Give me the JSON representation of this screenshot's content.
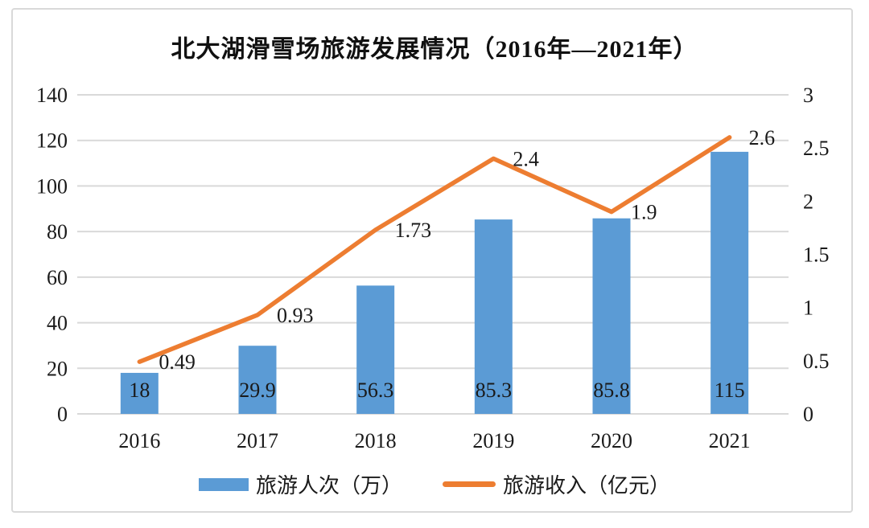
{
  "title": "北大湖滑雪场旅游发展情况（2016年—2021年）",
  "chart_data": {
    "type": "combo-bar-line",
    "title": "北大湖滑雪场旅游发展情况（2016年—2021年）",
    "categories": [
      "2016",
      "2017",
      "2018",
      "2019",
      "2020",
      "2021"
    ],
    "series": [
      {
        "name": "旅游人次（万）",
        "type": "bar",
        "axis": "left",
        "color": "#5B9BD5",
        "values": [
          18,
          29.9,
          56.3,
          85.3,
          85.8,
          115
        ],
        "labels": [
          "18",
          "29.9",
          "56.3",
          "85.3",
          "85.8",
          "115"
        ]
      },
      {
        "name": "旅游收入（亿元）",
        "type": "line",
        "axis": "right",
        "color": "#ED7D31",
        "values": [
          0.49,
          0.93,
          1.73,
          2.4,
          1.9,
          2.6
        ],
        "labels": [
          "0.49",
          "0.93",
          "1.73",
          "2.4",
          "1.9",
          "2.6"
        ]
      }
    ],
    "left_axis": {
      "min": 0,
      "max": 140,
      "step": 20,
      "ticks": [
        "0",
        "20",
        "40",
        "60",
        "80",
        "100",
        "120",
        "140"
      ]
    },
    "right_axis": {
      "min": 0,
      "max": 3,
      "step": 0.5,
      "ticks": [
        "0",
        "0.5",
        "1",
        "1.5",
        "2",
        "2.5",
        "3"
      ]
    },
    "grid": true,
    "legend_position": "bottom"
  },
  "colors": {
    "bar": "#5B9BD5",
    "line": "#ED7D31",
    "grid": "#D9D9D9",
    "text": "#1A1A1A",
    "border": "#D9D9D9",
    "background": "#FFFFFF"
  }
}
